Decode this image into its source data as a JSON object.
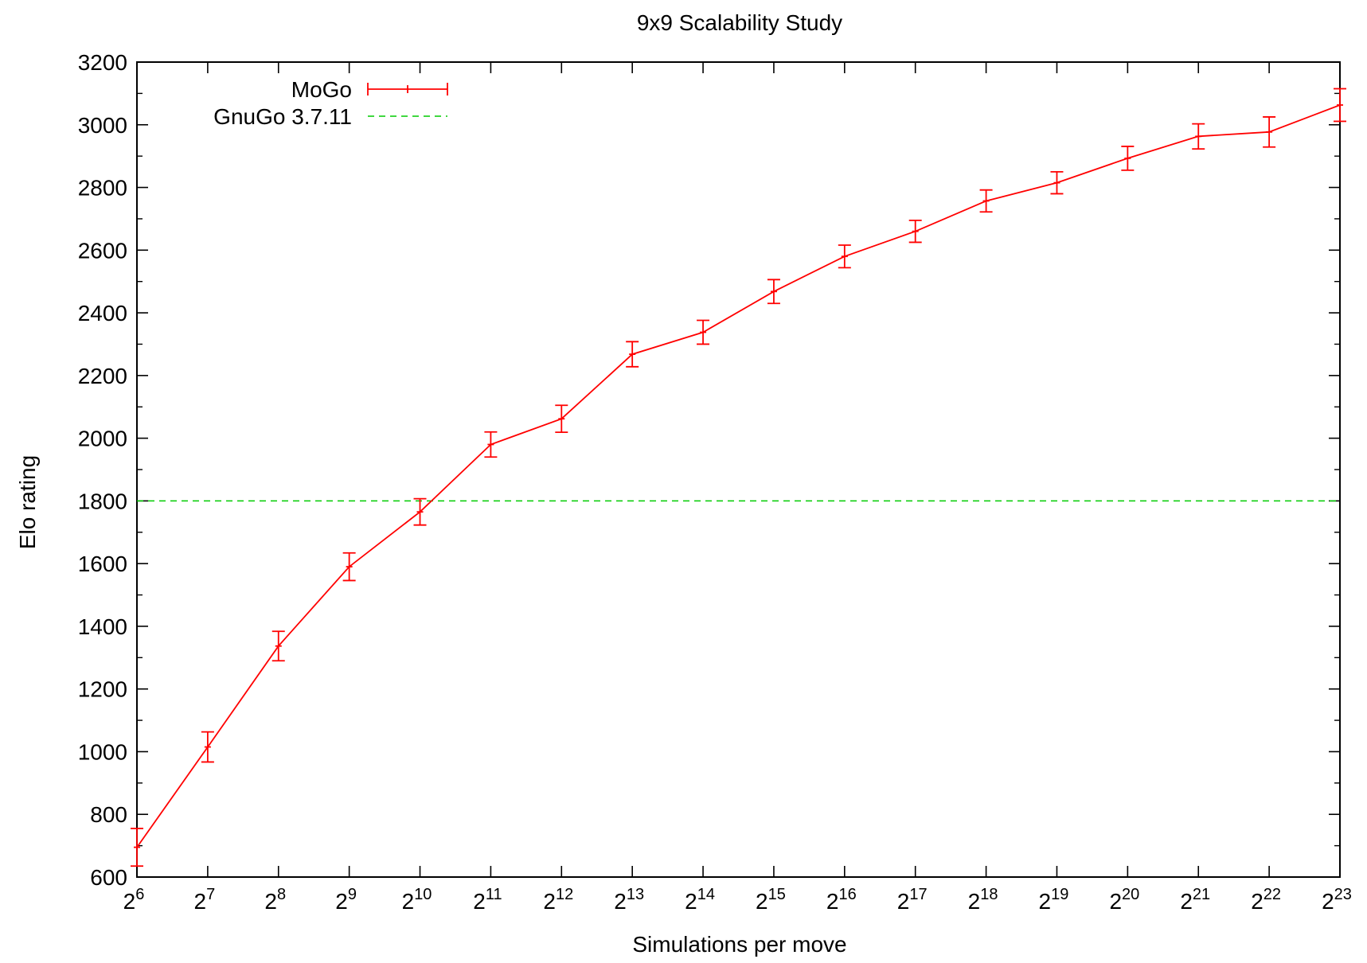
{
  "chart_data": {
    "type": "line",
    "title": "9x9 Scalability Study",
    "xlabel": "Simulations per move",
    "ylabel": "Elo rating",
    "x_scale": "log2",
    "xlim": [
      64,
      8388608
    ],
    "ylim": [
      600,
      3200
    ],
    "y_ticks": [
      600,
      800,
      1000,
      1200,
      1400,
      1600,
      1800,
      2000,
      2200,
      2400,
      2600,
      2800,
      3000,
      3200
    ],
    "x_ticks": [
      {
        "value": 64,
        "base": "2",
        "exp": "6"
      },
      {
        "value": 128,
        "base": "2",
        "exp": "7"
      },
      {
        "value": 256,
        "base": "2",
        "exp": "8"
      },
      {
        "value": 512,
        "base": "2",
        "exp": "9"
      },
      {
        "value": 1024,
        "base": "2",
        "exp": "10"
      },
      {
        "value": 2048,
        "base": "2",
        "exp": "11"
      },
      {
        "value": 4096,
        "base": "2",
        "exp": "12"
      },
      {
        "value": 8192,
        "base": "2",
        "exp": "13"
      },
      {
        "value": 16384,
        "base": "2",
        "exp": "14"
      },
      {
        "value": 32768,
        "base": "2",
        "exp": "15"
      },
      {
        "value": 65536,
        "base": "2",
        "exp": "16"
      },
      {
        "value": 131072,
        "base": "2",
        "exp": "17"
      },
      {
        "value": 262144,
        "base": "2",
        "exp": "18"
      },
      {
        "value": 524288,
        "base": "2",
        "exp": "19"
      },
      {
        "value": 1048576,
        "base": "2",
        "exp": "20"
      },
      {
        "value": 2097152,
        "base": "2",
        "exp": "21"
      },
      {
        "value": 4194304,
        "base": "2",
        "exp": "22"
      },
      {
        "value": 8388608,
        "base": "2",
        "exp": "23"
      }
    ],
    "legend_position": "top-left",
    "grid": false,
    "series": [
      {
        "name": "MoGo",
        "color": "#ff0000",
        "style": "line-errorbars",
        "points": [
          {
            "x": 64,
            "y": 695,
            "err": 60
          },
          {
            "x": 128,
            "y": 1015,
            "err": 48
          },
          {
            "x": 256,
            "y": 1337,
            "err": 47
          },
          {
            "x": 512,
            "y": 1590,
            "err": 44
          },
          {
            "x": 1024,
            "y": 1765,
            "err": 42
          },
          {
            "x": 2048,
            "y": 1980,
            "err": 40
          },
          {
            "x": 4096,
            "y": 2062,
            "err": 43
          },
          {
            "x": 8192,
            "y": 2268,
            "err": 40
          },
          {
            "x": 16384,
            "y": 2338,
            "err": 38
          },
          {
            "x": 32768,
            "y": 2468,
            "err": 38
          },
          {
            "x": 65536,
            "y": 2580,
            "err": 36
          },
          {
            "x": 131072,
            "y": 2660,
            "err": 35
          },
          {
            "x": 262144,
            "y": 2757,
            "err": 35
          },
          {
            "x": 524288,
            "y": 2815,
            "err": 35
          },
          {
            "x": 1048576,
            "y": 2893,
            "err": 38
          },
          {
            "x": 2097152,
            "y": 2963,
            "err": 40
          },
          {
            "x": 4194304,
            "y": 2977,
            "err": 48
          },
          {
            "x": 8388608,
            "y": 3063,
            "err": 52
          }
        ]
      },
      {
        "name": "GnuGo 3.7.11",
        "color": "#00cc00",
        "style": "dashed-hline",
        "y": 1800
      }
    ]
  }
}
